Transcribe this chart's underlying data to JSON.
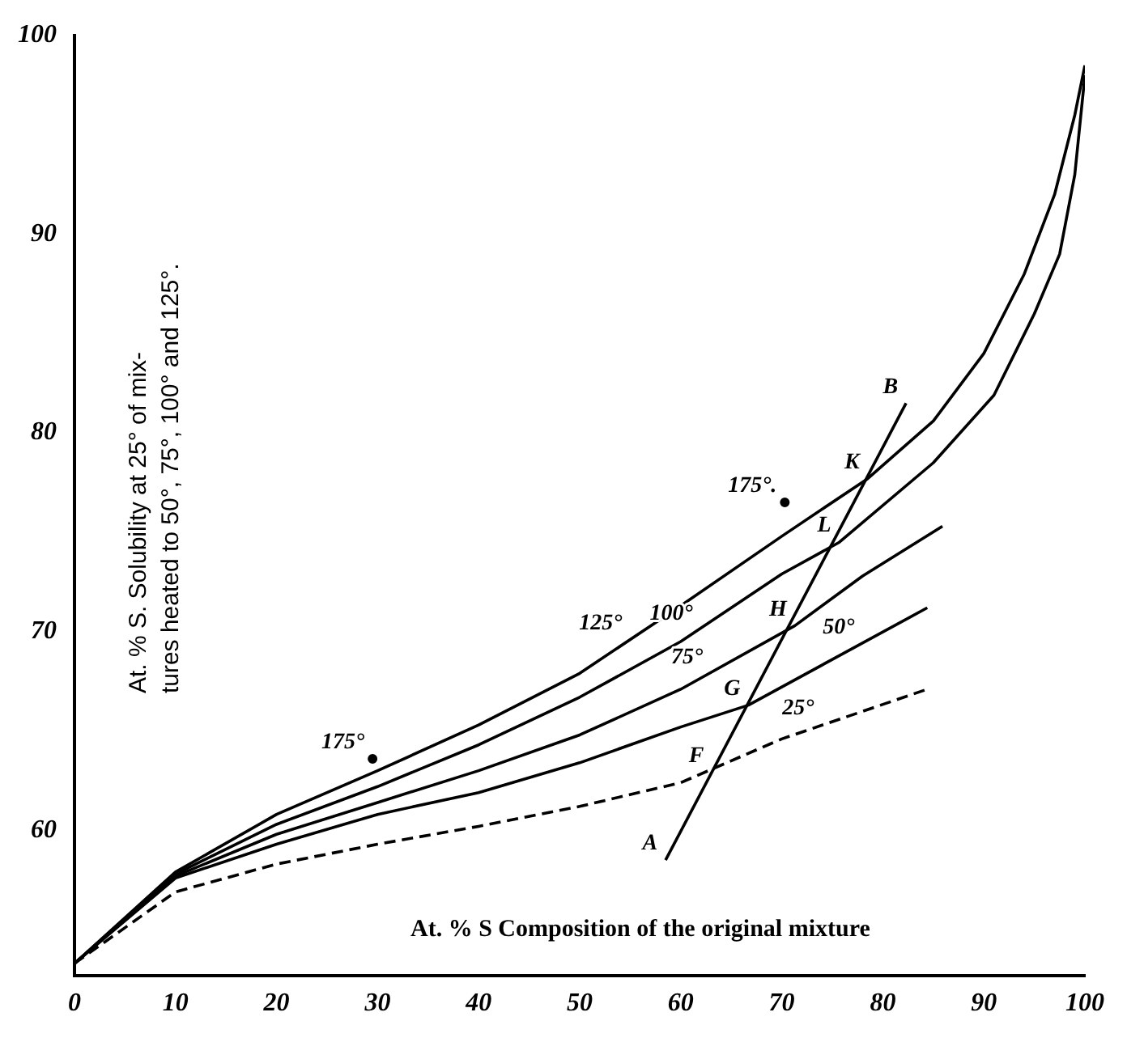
{
  "chart_data": {
    "type": "line",
    "xlabel": "At. % S Composition of the original mixture",
    "ylabel": "At. % S. Solubility at 25° of mix-\ntures heated to 50°, 75°, 100° and 125°.",
    "xlim": [
      0,
      100
    ],
    "ylim": [
      52.7,
      100
    ],
    "xticks": [
      0,
      10,
      20,
      30,
      40,
      50,
      60,
      70,
      80,
      90,
      100
    ],
    "yticks": [
      60,
      70,
      80,
      90,
      100
    ],
    "grid": false,
    "legend": false,
    "marker": "none",
    "series": [
      {
        "color": "#000000",
        "line_style": "solid",
        "x": [
          0,
          10,
          20,
          30,
          40,
          50,
          60,
          70,
          78.5,
          85,
          90,
          94,
          97,
          99,
          100
        ],
        "values": [
          53.3,
          57.9,
          60.8,
          63.0,
          65.3,
          67.9,
          71.3,
          74.8,
          77.7,
          80.6,
          84,
          88,
          92,
          96,
          98.5
        ]
      },
      {
        "color": "#000000",
        "line_style": "solid",
        "x": [
          0,
          10,
          20,
          30,
          40,
          50,
          60,
          70,
          75.7,
          85,
          91,
          95,
          97.5,
          99,
          100
        ],
        "values": [
          53.3,
          57.8,
          60.3,
          62.2,
          64.3,
          66.7,
          69.5,
          72.9,
          74.5,
          78.5,
          81.9,
          86,
          89,
          93,
          98
        ]
      },
      {
        "color": "#000000",
        "line_style": "solid",
        "x": [
          0,
          10,
          20,
          30,
          40,
          50,
          60,
          71.3,
          78,
          85.9
        ],
        "values": [
          53.3,
          57.7,
          59.8,
          61.4,
          63,
          64.8,
          67.1,
          70.3,
          72.8,
          75.3
        ]
      },
      {
        "color": "#000000",
        "line_style": "solid",
        "x": [
          0,
          10,
          20,
          30,
          40,
          50,
          60,
          66.7,
          75,
          84.4
        ],
        "values": [
          53.3,
          57.6,
          59.3,
          60.8,
          61.9,
          63.4,
          65.2,
          66.3,
          68.6,
          71.2
        ]
      },
      {
        "color": "#000000",
        "line_style": "dashed",
        "x": [
          0,
          10,
          20,
          30,
          40,
          50,
          60,
          70,
          84.4
        ],
        "values": [
          53.3,
          56.9,
          58.3,
          59.3,
          60.2,
          61.2,
          62.4,
          64.6,
          67.1
        ]
      },
      {
        "color": "#000000",
        "line_style": "solid",
        "x": [
          58.5,
          82.3
        ],
        "values": [
          58.5,
          81.5
        ]
      },
      {
        "type": "scatter",
        "color": "#000000",
        "marker": "circle",
        "x": [
          29.5,
          70.3
        ],
        "values": [
          63.6,
          76.5
        ]
      }
    ],
    "annotations": [
      {
        "text": "125°",
        "x": 55,
        "y": 69.6
      },
      {
        "text": "100°",
        "x": 62,
        "y": 70.1
      },
      {
        "text": "75°",
        "x": 63,
        "y": 67.9
      },
      {
        "text": "50°",
        "x": 78,
        "y": 69.4
      },
      {
        "text": "25°",
        "x": 74,
        "y": 65.3
      },
      {
        "text": "175°",
        "x": 29.5,
        "y": 63.6
      },
      {
        "text": "175°.",
        "x": 70.3,
        "y": 76.5
      },
      {
        "text": "A",
        "x": 58.5,
        "y": 58.5
      },
      {
        "text": "B",
        "x": 82.3,
        "y": 81.5
      },
      {
        "text": "K",
        "x": 78.5,
        "y": 77.7
      },
      {
        "text": "L",
        "x": 75.7,
        "y": 74.5
      },
      {
        "text": "H",
        "x": 71.3,
        "y": 70.3
      },
      {
        "text": "G",
        "x": 66.7,
        "y": 66.3
      },
      {
        "text": "F",
        "x": 63.1,
        "y": 62.9
      }
    ]
  }
}
